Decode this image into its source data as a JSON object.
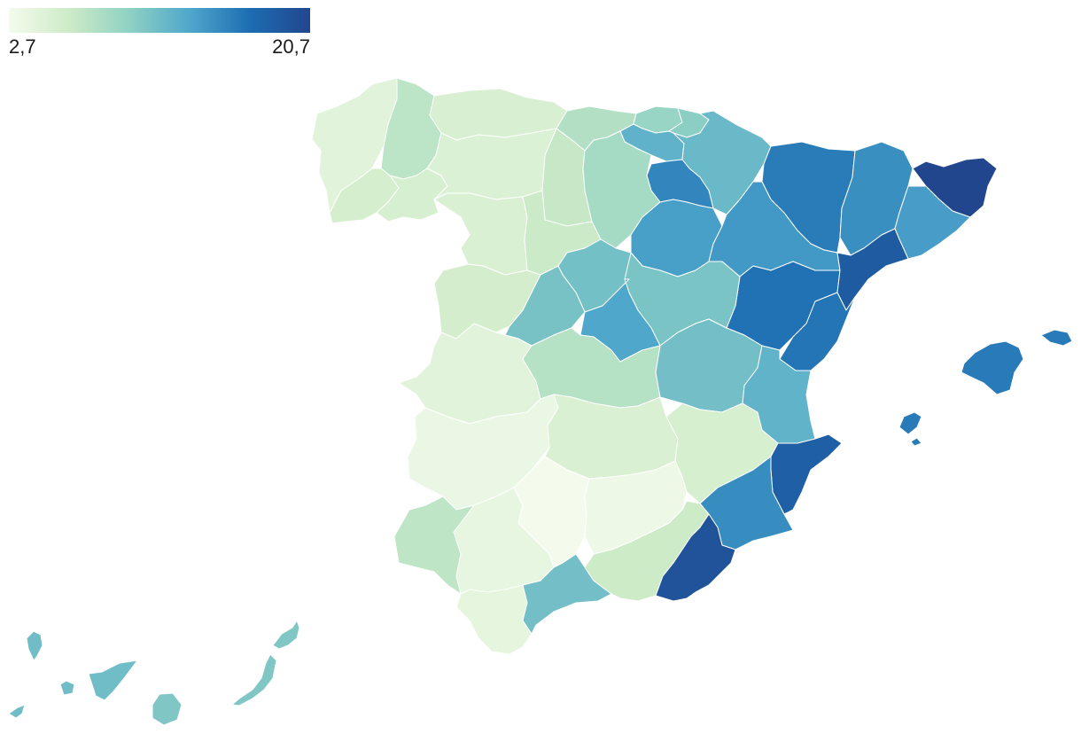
{
  "legend": {
    "min_label": "2,7",
    "max_label": "20,7",
    "min_value": 2.7,
    "max_value": 20.7,
    "colors": [
      "#f4fbed",
      "#cdebc7",
      "#8fd1c3",
      "#4fa7cc",
      "#1d6db2",
      "#22468e"
    ]
  },
  "map": {
    "type": "choropleth",
    "country": "Spain",
    "level": "provinces",
    "regions": [
      {
        "id": "coruna",
        "value": 4.5
      },
      {
        "id": "lugo",
        "value": 7.3
      },
      {
        "id": "pontevedra",
        "value": 5.6
      },
      {
        "id": "ourense",
        "value": 5.4
      },
      {
        "id": "asturias",
        "value": 5.3
      },
      {
        "id": "cantabria",
        "value": 7.8
      },
      {
        "id": "bizkaia",
        "value": 9.3
      },
      {
        "id": "gipuzkoa",
        "value": 10.2
      },
      {
        "id": "araba",
        "value": 12.6
      },
      {
        "id": "navarra",
        "value": 12.0
      },
      {
        "id": "la-rioja",
        "value": 15.6
      },
      {
        "id": "leon",
        "value": 5.0
      },
      {
        "id": "palencia",
        "value": 6.7
      },
      {
        "id": "burgos",
        "value": 8.6
      },
      {
        "id": "zamora",
        "value": 5.2
      },
      {
        "id": "valladolid",
        "value": 6.4
      },
      {
        "id": "soria",
        "value": 14.0
      },
      {
        "id": "salamanca",
        "value": 5.7
      },
      {
        "id": "segovia",
        "value": 11.4
      },
      {
        "id": "avila",
        "value": 11.2
      },
      {
        "id": "huesca",
        "value": 16.2
      },
      {
        "id": "zaragoza",
        "value": 14.4
      },
      {
        "id": "teruel",
        "value": 16.8
      },
      {
        "id": "guadalajara",
        "value": 11.0
      },
      {
        "id": "madrid",
        "value": 13.5
      },
      {
        "id": "caceres",
        "value": 4.4
      },
      {
        "id": "toledo",
        "value": 7.7
      },
      {
        "id": "cuenca",
        "value": 11.5
      },
      {
        "id": "badajoz",
        "value": 3.5
      },
      {
        "id": "ciudad-real",
        "value": 5.2
      },
      {
        "id": "albacete",
        "value": 5.5
      },
      {
        "id": "lleida",
        "value": 15.0
      },
      {
        "id": "barcelona",
        "value": 14.1
      },
      {
        "id": "girona",
        "value": 20.7
      },
      {
        "id": "tarragona",
        "value": 18.8
      },
      {
        "id": "castellon",
        "value": 16.6
      },
      {
        "id": "valencia",
        "value": 12.5
      },
      {
        "id": "alicante",
        "value": 18.4
      },
      {
        "id": "murcia",
        "value": 15.2
      },
      {
        "id": "huelva",
        "value": 7.2
      },
      {
        "id": "sevilla",
        "value": 3.9
      },
      {
        "id": "cordoba",
        "value": 2.7
      },
      {
        "id": "jaen",
        "value": 3.3
      },
      {
        "id": "cadiz",
        "value": 4.1
      },
      {
        "id": "malaga",
        "value": 11.5
      },
      {
        "id": "granada",
        "value": 6.2
      },
      {
        "id": "almeria",
        "value": 19.5
      },
      {
        "id": "mallorca",
        "value": 16.3
      },
      {
        "id": "menorca",
        "value": 16.3
      },
      {
        "id": "ibiza",
        "value": 16.3
      },
      {
        "id": "formentera",
        "value": 16.3
      },
      {
        "id": "la-palma",
        "value": 11.6
      },
      {
        "id": "tenerife",
        "value": 11.6
      },
      {
        "id": "la-gomera",
        "value": 11.6
      },
      {
        "id": "el-hierro",
        "value": 11.6
      },
      {
        "id": "gran-canaria",
        "value": 10.8
      },
      {
        "id": "fuerteventura",
        "value": 10.8
      },
      {
        "id": "lanzarote",
        "value": 10.8
      }
    ]
  }
}
